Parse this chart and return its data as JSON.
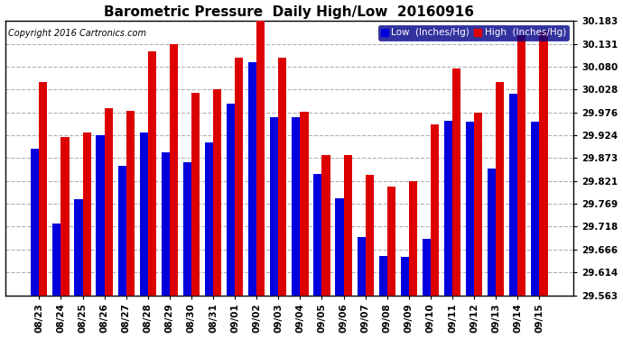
{
  "title": "Barometric Pressure  Daily High/Low  20160916",
  "copyright": "Copyright 2016 Cartronics.com",
  "legend_low": "Low  (Inches/Hg)",
  "legend_high": "High  (Inches/Hg)",
  "dates": [
    "08/23",
    "08/24",
    "08/25",
    "08/26",
    "08/27",
    "08/28",
    "08/29",
    "08/30",
    "08/31",
    "09/01",
    "09/02",
    "09/03",
    "09/04",
    "09/05",
    "09/06",
    "09/07",
    "09/08",
    "09/09",
    "09/10",
    "09/11",
    "09/12",
    "09/13",
    "09/14",
    "09/15"
  ],
  "low": [
    29.895,
    29.726,
    29.78,
    29.924,
    29.855,
    29.93,
    29.885,
    29.863,
    29.908,
    29.995,
    30.09,
    29.965,
    29.965,
    29.836,
    29.783,
    29.695,
    29.652,
    29.649,
    29.69,
    29.958,
    29.955,
    29.85,
    30.018,
    29.955
  ],
  "high": [
    30.045,
    29.92,
    29.93,
    29.985,
    29.98,
    30.115,
    30.13,
    30.02,
    30.028,
    30.1,
    30.183,
    30.1,
    29.978,
    29.88,
    29.88,
    29.834,
    29.808,
    29.82,
    29.95,
    30.075,
    29.976,
    30.045,
    30.15,
    30.16
  ],
  "ylim_min": 29.563,
  "ylim_max": 30.183,
  "yticks": [
    29.563,
    29.614,
    29.666,
    29.718,
    29.769,
    29.821,
    29.873,
    29.924,
    29.976,
    30.028,
    30.08,
    30.131,
    30.183
  ],
  "bar_width": 0.38,
  "low_color": "#0000dd",
  "high_color": "#dd0000",
  "bg_color": "#ffffff",
  "grid_color": "#b0b0b0",
  "title_fontsize": 11,
  "tick_fontsize": 7.5,
  "copyright_fontsize": 7,
  "legend_fontsize": 7.5
}
